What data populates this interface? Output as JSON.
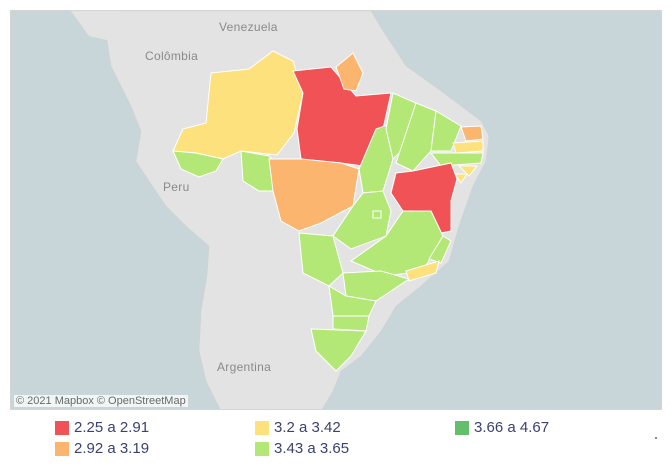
{
  "map": {
    "country_labels": {
      "venezuela": "Venezuela",
      "colombia": "Colômbia",
      "peru": "Peru",
      "argentina": "Argentina"
    },
    "attribution": "© 2021 Mapbox © OpenStreetMap"
  },
  "legend": {
    "items": [
      {
        "label": "2.25 a 2.91",
        "color": "#f05256"
      },
      {
        "label": "3.2 a 3.42",
        "color": "#fde17d"
      },
      {
        "label": "3.66 a 4.67",
        "color": "#63bf6a"
      },
      {
        "label": "2.92 a 3.19",
        "color": "#fbb56e"
      },
      {
        "label": "3.43 a 3.65",
        "color": "#b3e877"
      }
    ]
  },
  "colors": {
    "ocean": "#c8d6d9",
    "land": "#e3e3e3",
    "border": "#ffffff"
  }
}
